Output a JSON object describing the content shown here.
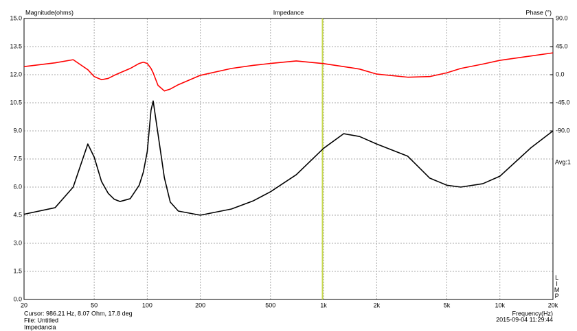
{
  "chart_data": {
    "type": "line",
    "title": "Impedance",
    "y_label": "Magnitude(ohms)",
    "y2_label": "Phase (°)",
    "x_label": "Frequency(Hz)",
    "timestamp": "2015-09-04 11:29:44",
    "average": "Avg:1",
    "program": "LIMP",
    "cursor": {
      "label": "Cursor: 986.21 Hz, 8.07 Ohm, 17.8 deg",
      "x": 986.21,
      "color": "#c8d850"
    },
    "file": "File: Untitled",
    "note": "Impedancia",
    "x_log": true,
    "grid": true,
    "xlim": [
      20,
      20000
    ],
    "xticks": [
      20,
      50,
      100,
      200,
      500,
      {
        "value": 1000,
        "label": "1k"
      },
      {
        "value": 2000,
        "label": "2k"
      },
      {
        "value": 5000,
        "label": "5k"
      },
      {
        "value": 10000,
        "label": "10k"
      },
      {
        "value": 20000,
        "label": "20k"
      }
    ],
    "ylim": [
      0,
      15
    ],
    "yticks": [
      {
        "value": 0,
        "label": "0.0"
      },
      1.5,
      {
        "value": 3,
        "label": "3.0"
      },
      4.5,
      {
        "value": 6,
        "label": "6.0"
      },
      7.5,
      {
        "value": 9,
        "label": "9.0"
      },
      10.5,
      {
        "value": 12,
        "label": "12.0"
      },
      13.5,
      {
        "value": 15,
        "label": "15.0"
      }
    ],
    "y2lim": [
      -360,
      90
    ],
    "y2ticks": [
      {
        "value": 90,
        "label": "90.0"
      },
      {
        "value": 45,
        "label": "45.0"
      },
      {
        "value": 0,
        "label": "0.0"
      },
      {
        "value": -45,
        "label": "-45.0"
      },
      {
        "value": -90,
        "label": "-90.0"
      }
    ],
    "x": [
      20,
      30,
      38,
      46,
      50,
      55,
      60,
      65,
      70,
      80,
      90,
      95,
      100,
      105,
      108,
      115,
      125,
      135,
      150,
      200,
      300,
      400,
      500,
      700,
      1000,
      1300,
      1600,
      2000,
      3000,
      4000,
      5000,
      6000,
      8000,
      10000,
      15000,
      20000
    ],
    "series": [
      {
        "name": "Magnitude",
        "color": "#000000",
        "values": [
          4.55,
          4.9,
          6.0,
          8.3,
          7.6,
          6.3,
          5.67,
          5.35,
          5.23,
          5.38,
          6.1,
          6.8,
          7.9,
          10.1,
          10.6,
          8.85,
          6.5,
          5.2,
          4.72,
          4.5,
          4.83,
          5.27,
          5.75,
          6.66,
          8.07,
          8.85,
          8.7,
          8.3,
          7.65,
          6.48,
          6.1,
          6.0,
          6.18,
          6.58,
          8.1,
          9.0
        ]
      },
      {
        "name": "Phase",
        "color": "#ff0000",
        "axis": "y2",
        "values": [
          13,
          19,
          24,
          8,
          -3,
          -8,
          -6,
          -1,
          3,
          10,
          18,
          20,
          18,
          10,
          3,
          -17,
          -26,
          -23,
          -16,
          -1,
          10,
          15,
          18,
          22,
          17.8,
          13,
          9,
          1,
          -4,
          -3,
          3,
          10,
          17,
          23,
          30,
          35
        ]
      }
    ]
  }
}
